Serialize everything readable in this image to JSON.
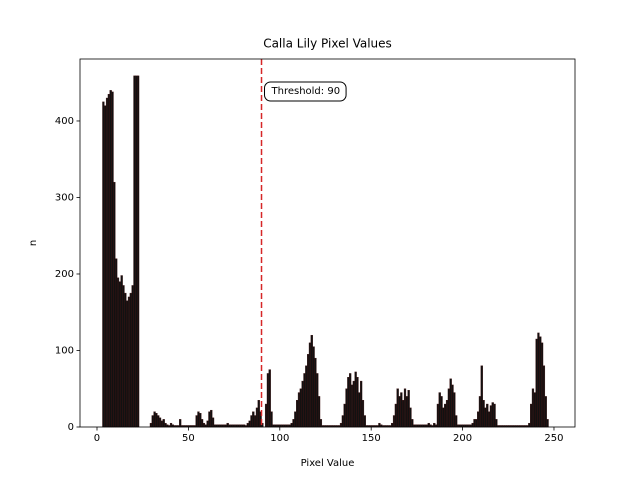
{
  "chart_data": {
    "type": "histogram",
    "title": "Calla Lily Pixel Values",
    "xlabel": "Pixel Value",
    "ylabel": "n",
    "annotation": "Threshold: 90",
    "threshold": 90,
    "threshold_color": "#d62728",
    "color": "#111111",
    "edgecolor": "#3a1010",
    "bins": [
      0,
      1,
      2,
      3,
      4,
      5,
      6,
      7,
      8,
      9,
      10,
      11,
      12,
      13,
      14,
      15,
      16,
      17,
      18,
      19,
      20,
      21,
      22,
      23,
      24,
      25,
      26,
      27,
      28,
      29,
      30,
      31,
      32,
      33,
      34,
      35,
      36,
      37,
      38,
      39,
      40,
      41,
      42,
      43,
      44,
      45,
      46,
      47,
      48,
      49,
      50,
      51,
      52,
      53,
      54,
      55,
      56,
      57,
      58,
      59,
      60,
      61,
      62,
      63,
      64,
      65,
      66,
      67,
      68,
      69,
      70,
      71,
      72,
      73,
      74,
      75,
      76,
      77,
      78,
      79,
      80,
      81,
      82,
      83,
      84,
      85,
      86,
      87,
      88,
      89,
      90,
      91,
      92,
      93,
      94,
      95,
      96,
      97,
      98,
      99,
      100,
      101,
      102,
      103,
      104,
      105,
      106,
      107,
      108,
      109,
      110,
      111,
      112,
      113,
      114,
      115,
      116,
      117,
      118,
      119,
      120,
      121,
      122,
      123,
      124,
      125,
      126,
      127,
      128,
      129,
      130,
      131,
      132,
      133,
      134,
      135,
      136,
      137,
      138,
      139,
      140,
      141,
      142,
      143,
      144,
      145,
      146,
      147,
      148,
      149,
      150,
      151,
      152,
      153,
      154,
      155,
      156,
      157,
      158,
      159,
      160,
      161,
      162,
      163,
      164,
      165,
      166,
      167,
      168,
      169,
      170,
      171,
      172,
      173,
      174,
      175,
      176,
      177,
      178,
      179,
      180,
      181,
      182,
      183,
      184,
      185,
      186,
      187,
      188,
      189,
      190,
      191,
      192,
      193,
      194,
      195,
      196,
      197,
      198,
      199,
      200,
      201,
      202,
      203,
      204,
      205,
      206,
      207,
      208,
      209,
      210,
      211,
      212,
      213,
      214,
      215,
      216,
      217,
      218,
      219,
      220,
      221,
      222,
      223,
      224,
      225,
      226,
      227,
      228,
      229,
      230,
      231,
      232,
      233,
      234,
      235,
      236,
      237,
      238,
      239,
      240,
      241,
      242,
      243,
      244,
      245,
      246,
      247,
      248,
      249,
      250,
      251,
      252,
      253,
      254,
      255,
      256
    ],
    "counts": [
      0,
      0,
      0,
      425,
      420,
      430,
      435,
      440,
      438,
      320,
      220,
      195,
      190,
      198,
      185,
      175,
      165,
      170,
      175,
      185,
      459,
      459,
      459,
      0,
      0,
      0,
      0,
      0,
      0,
      5,
      15,
      20,
      18,
      15,
      12,
      8,
      10,
      5,
      3,
      2,
      5,
      3,
      2,
      2,
      2,
      10,
      2,
      2,
      2,
      2,
      2,
      2,
      2,
      2,
      15,
      20,
      18,
      10,
      5,
      3,
      8,
      20,
      22,
      12,
      3,
      3,
      3,
      3,
      3,
      3,
      3,
      5,
      3,
      3,
      3,
      3,
      3,
      3,
      3,
      3,
      3,
      2,
      5,
      8,
      15,
      20,
      15,
      25,
      35,
      20,
      5,
      0,
      30,
      70,
      75,
      20,
      3,
      3,
      3,
      3,
      3,
      3,
      3,
      3,
      3,
      3,
      5,
      10,
      20,
      35,
      45,
      50,
      60,
      70,
      80,
      95,
      110,
      120,
      105,
      90,
      70,
      40,
      10,
      2,
      2,
      2,
      2,
      2,
      2,
      2,
      2,
      2,
      2,
      5,
      15,
      30,
      50,
      65,
      70,
      55,
      60,
      72,
      65,
      45,
      60,
      35,
      15,
      2,
      2,
      2,
      2,
      2,
      2,
      2,
      5,
      3,
      2,
      2,
      2,
      2,
      2,
      5,
      15,
      30,
      50,
      40,
      45,
      35,
      50,
      40,
      48,
      25,
      10,
      3,
      3,
      3,
      3,
      3,
      3,
      3,
      3,
      5,
      3,
      2,
      5,
      3,
      30,
      45,
      40,
      25,
      30,
      35,
      50,
      63,
      55,
      45,
      15,
      3,
      3,
      3,
      3,
      3,
      3,
      3,
      3,
      5,
      10,
      10,
      20,
      40,
      80,
      35,
      25,
      30,
      20,
      28,
      32,
      30,
      10,
      2,
      2,
      2,
      2,
      2,
      2,
      2,
      2,
      2,
      2,
      2,
      2,
      2,
      2,
      2,
      2,
      2,
      5,
      30,
      50,
      45,
      115,
      123,
      118,
      110,
      80,
      40,
      10,
      0,
      0,
      0,
      0,
      0,
      0,
      0,
      0,
      0
    ],
    "xlim": [
      -9.3,
      261.5
    ],
    "ylim": [
      0,
      481
    ],
    "xticks": [
      0,
      50,
      100,
      150,
      200,
      250
    ],
    "yticks": [
      0,
      100,
      200,
      300,
      400
    ]
  }
}
